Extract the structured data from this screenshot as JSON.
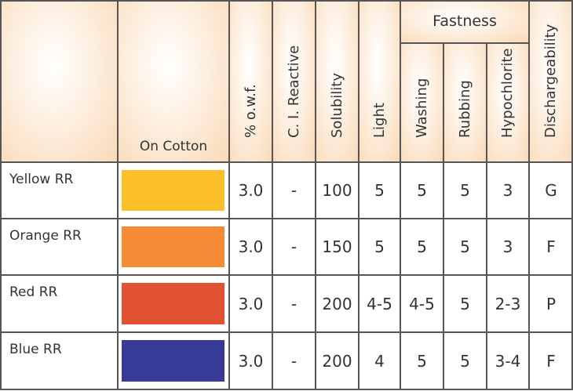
{
  "headers": {
    "on_cotton": "On Cotton",
    "owf": "% o.w.f.",
    "ci_reactive": "C. I. Reactive",
    "solubility": "Solubility",
    "fastness": "Fastness",
    "light": "Light",
    "washing": "Washing",
    "rubbing": "Rubbing",
    "hypochlorite": "Hypochlorite",
    "dischargeability": "Dischargeability"
  },
  "rows": [
    {
      "name": "Yellow RR",
      "color": "#fdc02a",
      "owf": "3.0",
      "ci": "-",
      "solubility": "100",
      "light": "5",
      "washing": "5",
      "rubbing": "5",
      "hypochlorite": "3",
      "discharge": "G"
    },
    {
      "name": "Orange RR",
      "color": "#f58a35",
      "owf": "3.0",
      "ci": "-",
      "solubility": "150",
      "light": "5",
      "washing": "5",
      "rubbing": "5",
      "hypochlorite": "3",
      "discharge": "F"
    },
    {
      "name": "Red RR",
      "color": "#e05233",
      "owf": "3.0",
      "ci": "-",
      "solubility": "200",
      "light": "4-5",
      "washing": "4-5",
      "rubbing": "5",
      "hypochlorite": "2-3",
      "discharge": "P"
    },
    {
      "name": "Blue RR",
      "color": "#383a97",
      "owf": "3.0",
      "ci": "-",
      "solubility": "200",
      "light": "4",
      "washing": "5",
      "rubbing": "5",
      "hypochlorite": "3-4",
      "discharge": "F"
    }
  ]
}
